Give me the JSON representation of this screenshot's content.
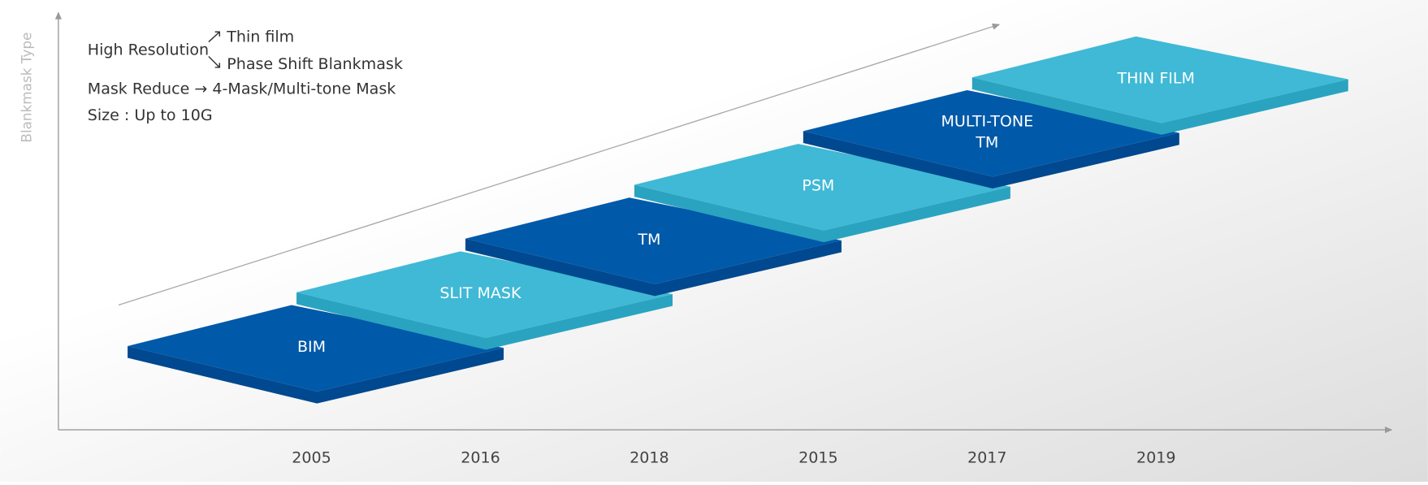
{
  "axis_label": "Blankmask Type",
  "notes": {
    "high_resolution": "High Resolution",
    "branch_1": "Thin film",
    "branch_2": "Phase Shift Blankmask",
    "line_2": "Mask Reduce → 4-Mask/Multi-tone Mask",
    "line_3": "Size : Up to 10G"
  },
  "tiles": [
    {
      "label": "BIM",
      "year": "2005",
      "style": "dark"
    },
    {
      "label": "SLIT MASK",
      "year": "2016",
      "style": "light"
    },
    {
      "label": "TM",
      "year": "2018",
      "style": "dark"
    },
    {
      "label": "PSM",
      "year": "2015",
      "style": "light"
    },
    {
      "label": "MULTI-TONE\nTM",
      "year": "2017",
      "style": "dark"
    },
    {
      "label": "THIN FILM",
      "year": "2019",
      "style": "light"
    }
  ]
}
